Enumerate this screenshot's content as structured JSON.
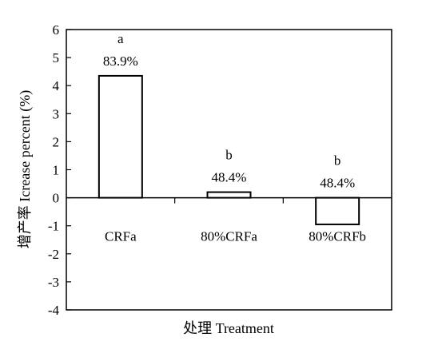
{
  "chart_data": {
    "type": "bar",
    "categories": [
      "CRFa",
      "80%CRFa",
      "80%CRFb"
    ],
    "values": [
      4.35,
      0.2,
      -0.95
    ],
    "significance_letters": [
      "a",
      "b",
      "b"
    ],
    "percent_labels": [
      "83.9%",
      "48.4%",
      "48.4%"
    ],
    "xlabel": "处理 Treatment",
    "ylabel": "增产率 Icrease percent (%)",
    "ylim": [
      -4,
      6
    ],
    "yticks": [
      6,
      5,
      4,
      3,
      2,
      1,
      0,
      -1,
      -2,
      -3,
      -4
    ],
    "grid": false,
    "bar_fill": "#ffffff",
    "bar_stroke": "#000000"
  }
}
